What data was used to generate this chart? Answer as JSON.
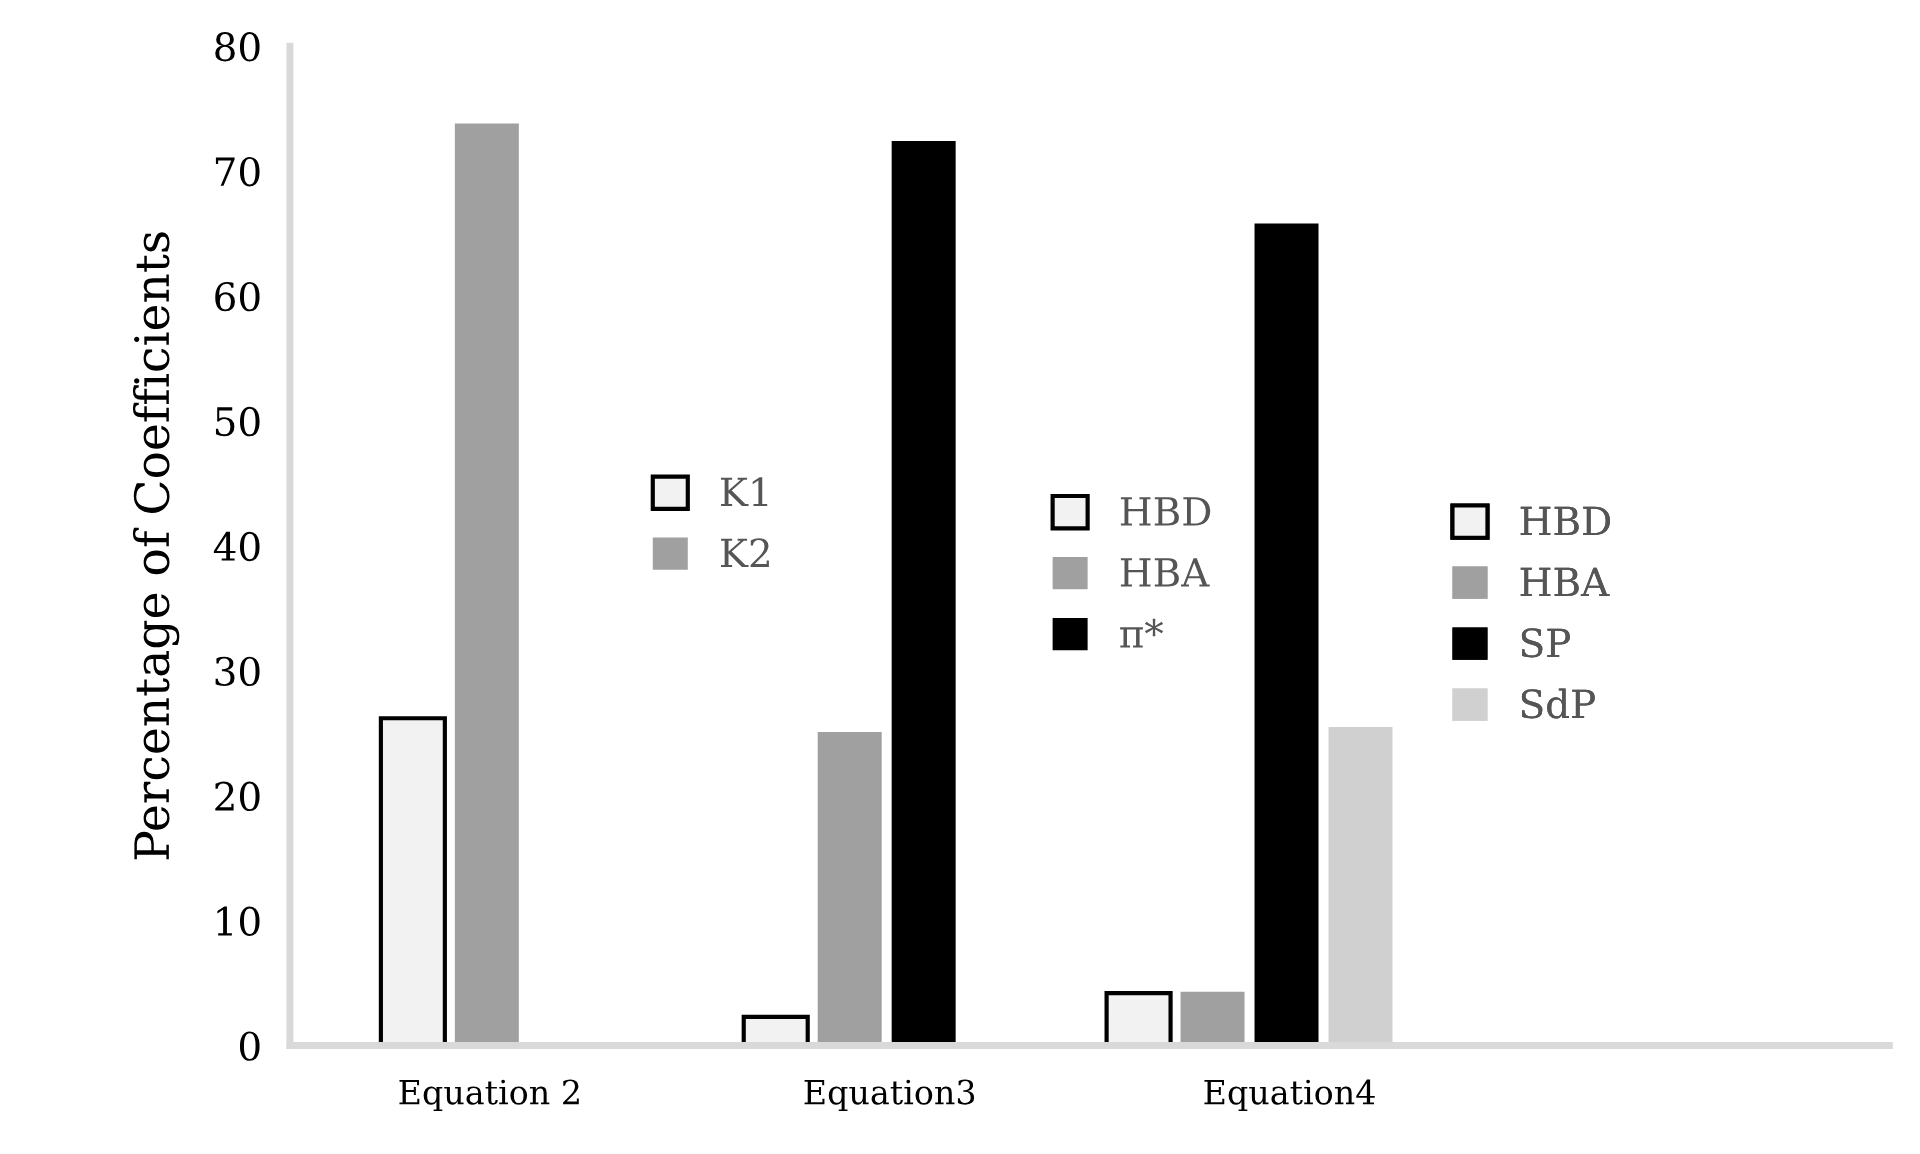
{
  "chart_data": {
    "type": "bar",
    "ylabel": "Percentage of Coefficients",
    "categories": [
      "Equation 2",
      "Equation3",
      "Equation4",
      null
    ],
    "series": [
      {
        "name": "K1",
        "color": "#f2f2f2",
        "values": [
          26.2,
          null,
          null,
          null
        ]
      },
      {
        "name": "K2",
        "color": "#a0a0a0",
        "values": [
          73.8,
          null,
          null,
          null
        ]
      },
      {
        "name": "HBD",
        "color": "#f2f2f2",
        "values": [
          null,
          2.3,
          null,
          null
        ]
      },
      {
        "name": "HBA",
        "color": "#a0a0a0",
        "values": [
          null,
          25.1,
          null,
          null
        ]
      },
      {
        "name": "π*",
        "color": "#000000",
        "values": [
          null,
          72.4,
          null,
          null
        ]
      },
      {
        "name": "HBD",
        "color": "#f2f2f2",
        "values": [
          null,
          null,
          4.2,
          null
        ]
      },
      {
        "name": "HBA",
        "color": "#a0a0a0",
        "values": [
          null,
          null,
          4.3,
          null
        ]
      },
      {
        "name": "SP",
        "color": "#000000",
        "values": [
          null,
          null,
          65.8,
          null
        ]
      },
      {
        "name": "SdP",
        "color": "#d0d0d0",
        "values": [
          null,
          null,
          25.5,
          null
        ]
      }
    ],
    "ylim": [
      0,
      80
    ],
    "yticks": [
      0,
      10,
      20,
      30,
      40,
      50,
      60,
      70,
      80
    ],
    "grid": false,
    "legend": "right"
  }
}
